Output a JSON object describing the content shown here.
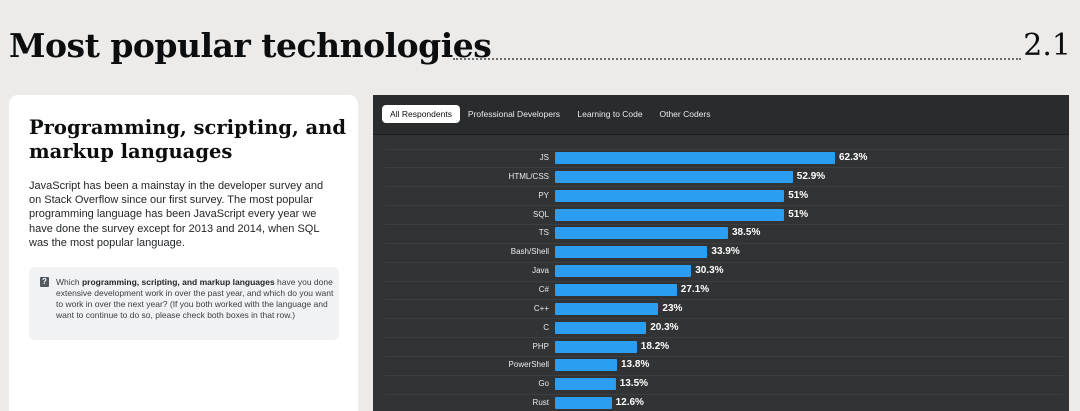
{
  "header": {
    "title": "Most popular technologies",
    "section_number": "2.1"
  },
  "card": {
    "title": "Programming, scripting, and markup languages",
    "body": "JavaScript has been a mainstay in the developer survey and on Stack Overflow since our first survey. The most popular programming language has been JavaScript every year we have done the survey except for 2013 and 2014, when SQL was the most popular language.",
    "question_icon": "question-mark-icon",
    "question_prefix": "Which ",
    "question_bold": "programming, scripting, and markup languages",
    "question_suffix": " have you done extensive development work in over the past year, and which do you want to work in over the next year? (If you both worked with the language and want to continue to do so, please check both boxes in that row.)"
  },
  "tabs": [
    {
      "label": "All Respondents",
      "active": true
    },
    {
      "label": "Professional Developers",
      "active": false
    },
    {
      "label": "Learning to Code",
      "active": false
    },
    {
      "label": "Other Coders",
      "active": false
    }
  ],
  "colors": {
    "bar": "#2b9ef2",
    "panel": "#323334",
    "page": "#ecebea"
  },
  "chart_data": {
    "type": "bar",
    "orientation": "horizontal",
    "categories": [
      "JS",
      "HTML/CSS",
      "PY",
      "SQL",
      "TS",
      "Bash/Shell",
      "Java",
      "C#",
      "C++",
      "C",
      "PHP",
      "PowerShell",
      "Go",
      "Rust"
    ],
    "values": [
      62.3,
      52.9,
      51,
      51,
      38.5,
      33.9,
      30.3,
      27.1,
      23,
      20.3,
      18.2,
      13.8,
      13.5,
      12.6
    ],
    "value_labels": [
      "62.3%",
      "52.9%",
      "51%",
      "51%",
      "38.5%",
      "33.9%",
      "30.3%",
      "27.1%",
      "23%",
      "20.3%",
      "18.2%",
      "13.8%",
      "13.5%",
      "12.6%"
    ],
    "title": "",
    "xlabel": "",
    "ylabel": ""
  }
}
